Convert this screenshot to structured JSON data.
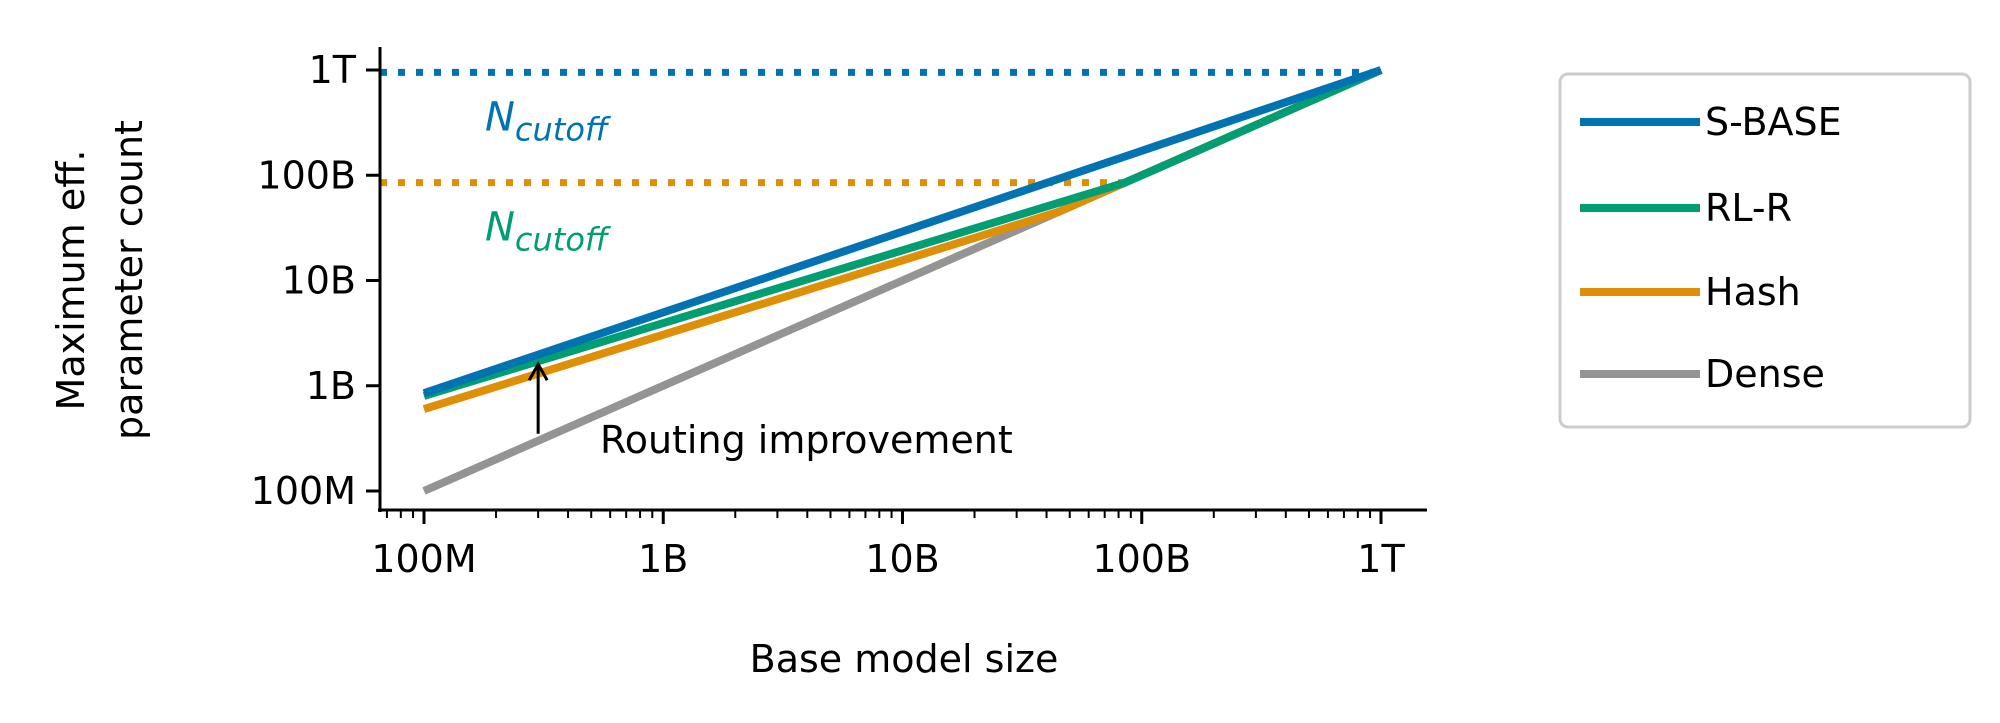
{
  "chart_data": {
    "type": "line",
    "title": "",
    "xlabel": "Base model size",
    "ylabel": [
      "Maximum eff.",
      "parameter count"
    ],
    "xscale": "log",
    "yscale": "log",
    "xlim": [
      70000000.0,
      1600000000000.0
    ],
    "ylim": [
      75000000.0,
      1600000000000.0
    ],
    "xticks": [
      {
        "v": 100000000.0,
        "label": "100M"
      },
      {
        "v": 1000000000.0,
        "label": "1B"
      },
      {
        "v": 10000000000.0,
        "label": "10B"
      },
      {
        "v": 100000000000.0,
        "label": "100B"
      },
      {
        "v": 1000000000000.0,
        "label": "1T"
      }
    ],
    "yticks": [
      {
        "v": 100000000.0,
        "label": "100M"
      },
      {
        "v": 1000000000.0,
        "label": "1B"
      },
      {
        "v": 10000000000.0,
        "label": "10B"
      },
      {
        "v": 100000000000.0,
        "label": "100B"
      },
      {
        "v": 1000000000000.0,
        "label": "1T"
      }
    ],
    "grid": false,
    "legend_position": "right-outside",
    "series": [
      {
        "name": "S-BASE",
        "color": "#0173b2",
        "x": [
          100000000.0,
          1000000000000.0
        ],
        "y": [
          850000000.0,
          1000000000000.0
        ]
      },
      {
        "name": "RL-R",
        "color": "#029e73",
        "x": [
          100000000.0,
          85000000000.0,
          1000000000000.0
        ],
        "y": [
          800000000.0,
          85000000000.0,
          1000000000000.0
        ]
      },
      {
        "name": "Hash",
        "color": "#de8f05",
        "x": [
          100000000.0,
          45000000000.0,
          1000000000000.0
        ],
        "y": [
          600000000.0,
          45000000000.0,
          1000000000000.0
        ]
      },
      {
        "name": "Dense",
        "color": "#949494",
        "x": [
          100000000.0,
          1000000000000.0
        ],
        "y": [
          100000000.0,
          1000000000000.0
        ]
      }
    ],
    "cutoffs": [
      {
        "value": 950000000000.0,
        "line_color": "#0173b2",
        "label_color": "#0173b2",
        "label_main": "N",
        "label_sub": "cutoff",
        "x_end": 1000000000000.0
      },
      {
        "value": 85000000000.0,
        "line_color": "#de8f05",
        "label_color": "#029e73",
        "label_main": "N",
        "label_sub": "cutoff",
        "x_end": 85000000000.0
      }
    ],
    "annotation": {
      "text": "Routing improvement",
      "arrow_x": 300000000.0,
      "arrow_from": 350000000.0,
      "arrow_to": 1600000000.0
    }
  }
}
